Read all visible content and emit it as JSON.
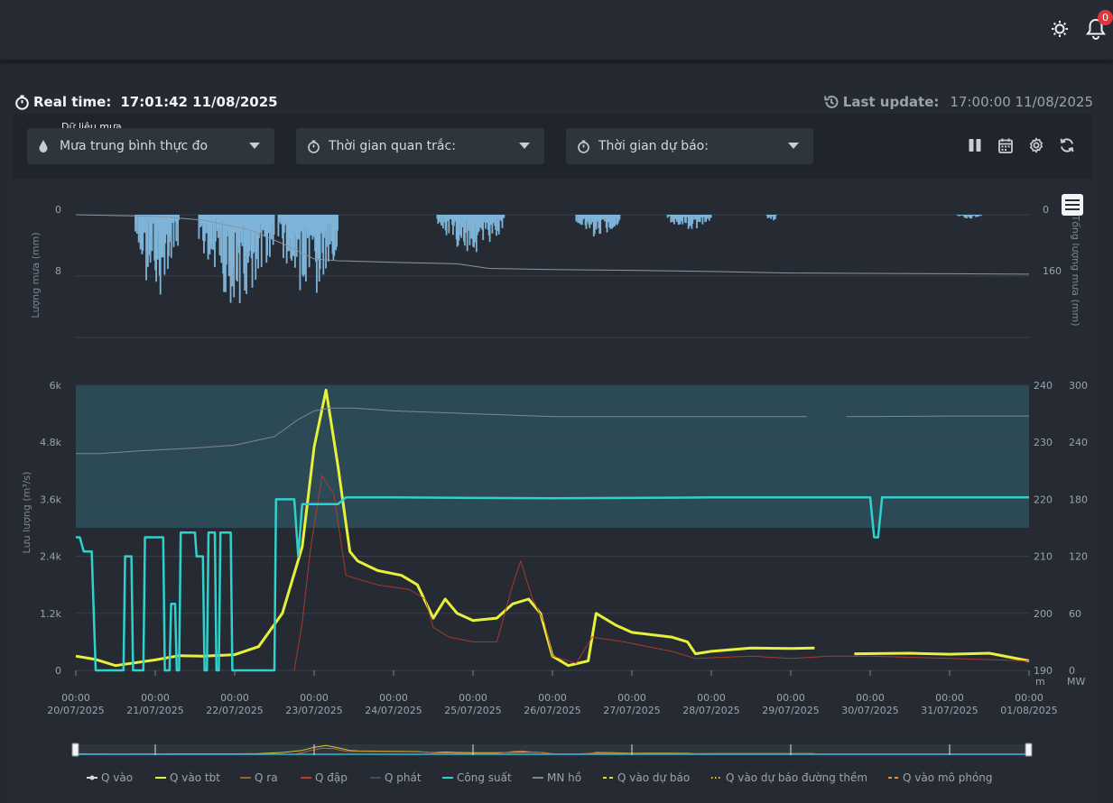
{
  "header": {
    "notification_count": "0",
    "icons": [
      "sun-icon",
      "bell-icon"
    ]
  },
  "status": {
    "realtime_label": "Real time:",
    "realtime_value": "17:01:42 11/08/2025",
    "last_update_label": "Last update:",
    "last_update_value": "17:00:00 11/08/2025"
  },
  "controls": {
    "rain_caption": "Dữ liệu mưa",
    "rain_select": "Mưa trung bình thực đo",
    "observe_select": "Thời gian quan trắc:",
    "forecast_select": "Thời gian dự báo:",
    "toolbar_icons": [
      "pause-icon",
      "calendar-icon",
      "settings-icon",
      "refresh-icon"
    ]
  },
  "chart_data": [
    {
      "type": "bar",
      "ylabel": "Lượng mưa (mm)",
      "y2label": "Tổng lượng mưa (mm)",
      "y_ticks": [
        "0",
        "8"
      ],
      "y2_ticks": [
        "0",
        "160"
      ],
      "y_inverted": true,
      "ylim": [
        0,
        16
      ],
      "y2lim": [
        0,
        320
      ],
      "colors": {
        "bars": "#7fb4d9",
        "cumulative": "#8a94a0"
      },
      "rain_clusters": [
        {
          "start": 0.75,
          "end": 1.3,
          "peak": 11
        },
        {
          "start": 1.55,
          "end": 2.5,
          "peak": 12
        },
        {
          "start": 2.55,
          "end": 3.3,
          "peak": 12
        },
        {
          "start": 4.55,
          "end": 5.4,
          "peak": 5
        },
        {
          "start": 6.3,
          "end": 6.85,
          "peak": 3
        },
        {
          "start": 7.45,
          "end": 8.0,
          "peak": 2
        },
        {
          "start": 8.7,
          "end": 8.82,
          "peak": 1
        },
        {
          "start": 11.1,
          "end": 11.4,
          "peak": 0.5
        }
      ],
      "cumulative_total": [
        [
          0,
          0
        ],
        [
          1.0,
          4
        ],
        [
          1.6,
          14
        ],
        [
          2.2,
          40
        ],
        [
          2.6,
          75
        ],
        [
          3.0,
          115
        ],
        [
          3.3,
          120
        ],
        [
          4.0,
          124
        ],
        [
          4.8,
          128
        ],
        [
          5.2,
          140
        ],
        [
          6.0,
          143
        ],
        [
          7.0,
          145
        ],
        [
          8.0,
          148
        ],
        [
          9.0,
          152
        ],
        [
          10.0,
          153
        ],
        [
          11.0,
          154
        ],
        [
          12.0,
          155
        ]
      ]
    },
    {
      "type": "line",
      "ylabel": "Lưu lượng (m³/s)",
      "y_ticks": [
        "0",
        "1.2k",
        "2.4k",
        "3.6k",
        "4.8k",
        "6k"
      ],
      "y2_ticks": [
        "190",
        "200",
        "210",
        "220",
        "230",
        "240"
      ],
      "y3_ticks": [
        "0",
        "60",
        "120",
        "180",
        "240",
        "300"
      ],
      "y2_unit": "m",
      "y3_unit": "MW",
      "ylim": [
        0,
        6000
      ],
      "y2lim": [
        190,
        240
      ],
      "y3lim": [
        0,
        300
      ],
      "x_ticks": [
        [
          "00:00",
          "20/07/2025"
        ],
        [
          "00:00",
          "21/07/2025"
        ],
        [
          "00:00",
          "22/07/2025"
        ],
        [
          "00:00",
          "23/07/2025"
        ],
        [
          "00:00",
          "24/07/2025"
        ],
        [
          "00:00",
          "25/07/2025"
        ],
        [
          "00:00",
          "26/07/2025"
        ],
        [
          "00:00",
          "27/07/2025"
        ],
        [
          "00:00",
          "28/07/2025"
        ],
        [
          "00:00",
          "29/07/2025"
        ],
        [
          "00:00",
          "30/07/2025"
        ],
        [
          "00:00",
          "31/07/2025"
        ],
        [
          "00:00",
          "01/08/2025"
        ]
      ],
      "x_unit": "days since 20/07/2025 00:00",
      "band": {
        "from": 3000,
        "to": 6000,
        "color": "#2b4a55"
      },
      "series": [
        {
          "name": "Q vào",
          "color": "#d9d9d9",
          "points": []
        },
        {
          "name": "Q vào tbt",
          "color": "#e7f03a",
          "points": [
            [
              0,
              300
            ],
            [
              0.25,
              230
            ],
            [
              0.5,
              100
            ],
            [
              1,
              220
            ],
            [
              1.3,
              310
            ],
            [
              1.6,
              300
            ],
            [
              2.0,
              330
            ],
            [
              2.3,
              500
            ],
            [
              2.6,
              1200
            ],
            [
              2.85,
              2600
            ],
            [
              3.0,
              4700
            ],
            [
              3.15,
              5900
            ],
            [
              3.3,
              4300
            ],
            [
              3.45,
              2500
            ],
            [
              3.55,
              2300
            ],
            [
              3.8,
              2100
            ],
            [
              4.1,
              2000
            ],
            [
              4.3,
              1800
            ],
            [
              4.5,
              1100
            ],
            [
              4.65,
              1500
            ],
            [
              4.8,
              1200
            ],
            [
              5.0,
              1050
            ],
            [
              5.3,
              1100
            ],
            [
              5.5,
              1400
            ],
            [
              5.7,
              1500
            ],
            [
              5.85,
              1200
            ],
            [
              6.0,
              300
            ],
            [
              6.2,
              100
            ],
            [
              6.45,
              200
            ],
            [
              6.55,
              1200
            ],
            [
              6.8,
              950
            ],
            [
              7.0,
              800
            ],
            [
              7.5,
              700
            ],
            [
              7.7,
              600
            ],
            [
              7.8,
              350
            ],
            [
              8.0,
              400
            ],
            [
              8.5,
              470
            ],
            [
              9.0,
              460
            ],
            [
              9.3,
              470
            ]
          ]
        },
        {
          "name": "Q vào tbt (30/07–01/08)",
          "color": "#e7f03a",
          "points": [
            [
              9.8,
              350
            ],
            [
              10.5,
              360
            ],
            [
              11.0,
              340
            ],
            [
              11.5,
              360
            ],
            [
              12.0,
              200
            ]
          ]
        },
        {
          "name": "Q ra",
          "color": "#8a6a3a",
          "points": []
        },
        {
          "name": "Q đập",
          "color": "#b83b2e",
          "points": [
            [
              2.75,
              0
            ],
            [
              2.85,
              1000
            ],
            [
              2.95,
              2500
            ],
            [
              3.1,
              4100
            ],
            [
              3.25,
              3700
            ],
            [
              3.4,
              2000
            ],
            [
              3.8,
              1800
            ],
            [
              4.2,
              1700
            ],
            [
              4.4,
              1500
            ],
            [
              4.5,
              900
            ],
            [
              4.7,
              700
            ],
            [
              5.0,
              600
            ],
            [
              5.3,
              600
            ],
            [
              5.5,
              1800
            ],
            [
              5.6,
              2300
            ],
            [
              5.75,
              1500
            ],
            [
              5.9,
              1000
            ],
            [
              6.0,
              300
            ],
            [
              6.3,
              150
            ],
            [
              6.5,
              700
            ],
            [
              6.9,
              600
            ],
            [
              7.2,
              500
            ],
            [
              7.5,
              400
            ],
            [
              7.8,
              250
            ],
            [
              8.5,
              300
            ],
            [
              9.0,
              250
            ],
            [
              9.5,
              300
            ],
            [
              10.0,
              300
            ],
            [
              11.0,
              250
            ],
            [
              12.0,
              200
            ]
          ]
        },
        {
          "name": "Q phát",
          "color": "#3a4d6b",
          "points": []
        },
        {
          "name": "Công suất",
          "color": "#2fd1cc",
          "points": [
            [
              0,
              140
            ],
            [
              0.05,
              140
            ],
            [
              0.1,
              125
            ],
            [
              0.2,
              125
            ],
            [
              0.25,
              0
            ],
            [
              0.6,
              0
            ],
            [
              0.62,
              120
            ],
            [
              0.7,
              120
            ],
            [
              0.72,
              0
            ],
            [
              0.85,
              0
            ],
            [
              0.87,
              140
            ],
            [
              1.1,
              140
            ],
            [
              1.12,
              0
            ],
            [
              1.18,
              0
            ],
            [
              1.2,
              70
            ],
            [
              1.25,
              70
            ],
            [
              1.27,
              0
            ],
            [
              1.3,
              0
            ],
            [
              1.32,
              145
            ],
            [
              1.5,
              145
            ],
            [
              1.52,
              120
            ],
            [
              1.6,
              120
            ],
            [
              1.62,
              0
            ],
            [
              1.65,
              0
            ],
            [
              1.67,
              145
            ],
            [
              1.75,
              145
            ],
            [
              1.77,
              0
            ],
            [
              1.8,
              0
            ],
            [
              1.82,
              145
            ],
            [
              1.95,
              145
            ],
            [
              1.97,
              0
            ],
            [
              2.5,
              0
            ],
            [
              2.52,
              180
            ],
            [
              2.75,
              180
            ],
            [
              2.8,
              120
            ],
            [
              2.85,
              175
            ],
            [
              3.3,
              175
            ],
            [
              3.4,
              182
            ],
            [
              4.0,
              182
            ],
            [
              6.0,
              181
            ],
            [
              8.0,
              182
            ],
            [
              10.0,
              182
            ],
            [
              10.05,
              140
            ],
            [
              10.1,
              140
            ],
            [
              10.15,
              182
            ],
            [
              12.0,
              182
            ]
          ]
        },
        {
          "name": "MN hồ",
          "color": "#7d8894",
          "points": [
            [
              0,
              228
            ],
            [
              0.3,
              228
            ],
            [
              0.8,
              228.5
            ],
            [
              1.5,
              229
            ],
            [
              2.0,
              229.5
            ],
            [
              2.5,
              231
            ],
            [
              2.8,
              234
            ],
            [
              3.0,
              235.5
            ],
            [
              3.2,
              236
            ],
            [
              3.5,
              236
            ],
            [
              4.0,
              235.5
            ],
            [
              5.0,
              235
            ],
            [
              6.0,
              234.5
            ],
            [
              7.0,
              234.5
            ],
            [
              8.0,
              234.5
            ],
            [
              8.5,
              234.5
            ],
            [
              9.2,
              234.5
            ]
          ]
        },
        {
          "name": "MN hồ (30/07–01/08)",
          "color": "#7d8894",
          "points": [
            [
              9.7,
              234.5
            ],
            [
              11.0,
              234.6
            ],
            [
              12.0,
              234.6
            ]
          ]
        },
        {
          "name": "Q vào dự báo",
          "color": "#e7d43a",
          "points": []
        },
        {
          "name": "Q vào dự báo đường thềm",
          "color": "#e7c23a",
          "points": []
        },
        {
          "name": "Q vào mô phỏng",
          "color": "#e8913a",
          "points": []
        }
      ]
    }
  ],
  "legend": [
    {
      "label": "Q vào",
      "color": "#d9d9d9",
      "style": "dot"
    },
    {
      "label": "Q vào tbt",
      "color": "#e7f03a",
      "style": "solid"
    },
    {
      "label": "Q ra",
      "color": "#8a6a3a",
      "style": "solid"
    },
    {
      "label": "Q đập",
      "color": "#b83b2e",
      "style": "solid"
    },
    {
      "label": "Q phát",
      "color": "#3a4d6b",
      "style": "solid"
    },
    {
      "label": "Công suất",
      "color": "#2fd1cc",
      "style": "solid"
    },
    {
      "label": "MN hồ",
      "color": "#7d8894",
      "style": "solid"
    },
    {
      "label": "Q vào dự báo",
      "color": "#e7d43a",
      "style": "dashed"
    },
    {
      "label": "Q vào dự báo đường thềm",
      "color": "#e7c23a",
      "style": "dotted"
    },
    {
      "label": "Q vào mô phỏng",
      "color": "#e8913a",
      "style": "dashed"
    }
  ]
}
